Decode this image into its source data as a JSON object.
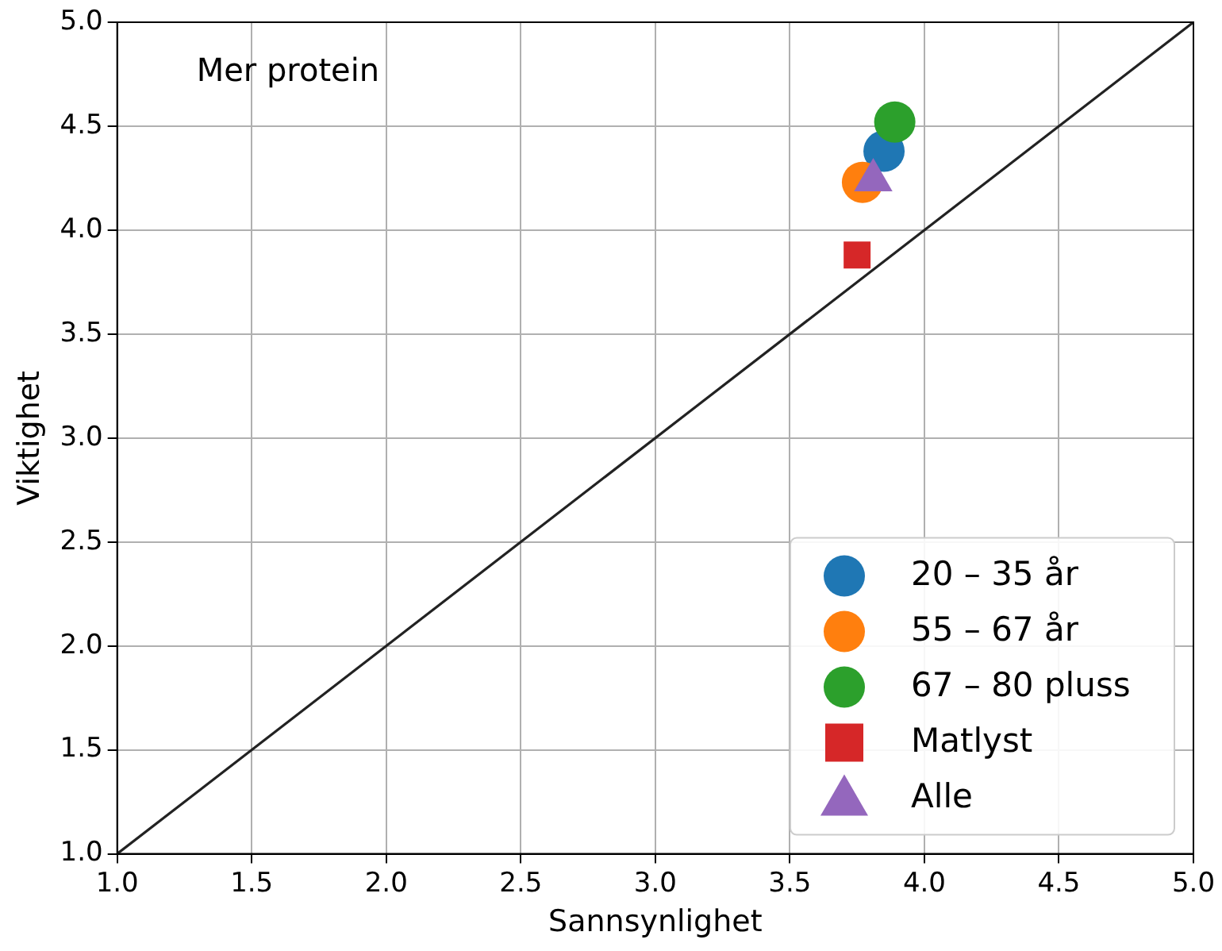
{
  "chart_data": {
    "type": "scatter",
    "xlabel": "Sannsynlighet",
    "ylabel": "Viktighet",
    "xlim": [
      1.0,
      5.0
    ],
    "ylim": [
      1.0,
      5.0
    ],
    "xticks": [
      {
        "value": 1,
        "label": "1.0"
      },
      {
        "value": 1.5,
        "label": "1.5"
      },
      {
        "value": 2,
        "label": "2.0"
      },
      {
        "value": 2.5,
        "label": "2.5"
      },
      {
        "value": 3,
        "label": "3.0"
      },
      {
        "value": 3.5,
        "label": "3.5"
      },
      {
        "value": 4,
        "label": "4.0"
      },
      {
        "value": 4.5,
        "label": "4.5"
      },
      {
        "value": 5,
        "label": "5.0"
      }
    ],
    "yticks": [
      {
        "value": 1,
        "label": "1.0"
      },
      {
        "value": 1.5,
        "label": "1.5"
      },
      {
        "value": 2,
        "label": "2.0"
      },
      {
        "value": 2.5,
        "label": "2.5"
      },
      {
        "value": 3,
        "label": "3.0"
      },
      {
        "value": 3.5,
        "label": "3.5"
      },
      {
        "value": 4,
        "label": "4.0"
      },
      {
        "value": 4.5,
        "label": "4.5"
      },
      {
        "value": 5,
        "label": "5.0"
      }
    ],
    "grid": true,
    "legend": "bottom right",
    "annotations": [
      "Mer protein"
    ],
    "series": [
      {
        "type": "line",
        "color": "#222222",
        "x": [
          1.0,
          5.0
        ],
        "values": [
          1.0,
          5.0
        ],
        "marker": "none",
        "line_style": "solid"
      },
      {
        "name": "20 – 35 år",
        "color": "#1f77b4",
        "x": [
          3.85
        ],
        "values": [
          4.38
        ],
        "marker": "circle"
      },
      {
        "name": "55 – 67 år",
        "color": "#ff7f0e",
        "x": [
          3.77
        ],
        "values": [
          4.23
        ],
        "marker": "circle"
      },
      {
        "name": "67 – 80 pluss",
        "color": "#2ca02c",
        "x": [
          3.89
        ],
        "values": [
          4.52
        ],
        "marker": "circle"
      },
      {
        "name": "Matlyst",
        "color": "#d62728",
        "x": [
          3.75
        ],
        "values": [
          3.88
        ],
        "marker": "square"
      },
      {
        "name": "Alle",
        "color": "#9467bd",
        "x": [
          3.81
        ],
        "values": [
          4.24
        ],
        "marker": "triangle"
      }
    ]
  }
}
